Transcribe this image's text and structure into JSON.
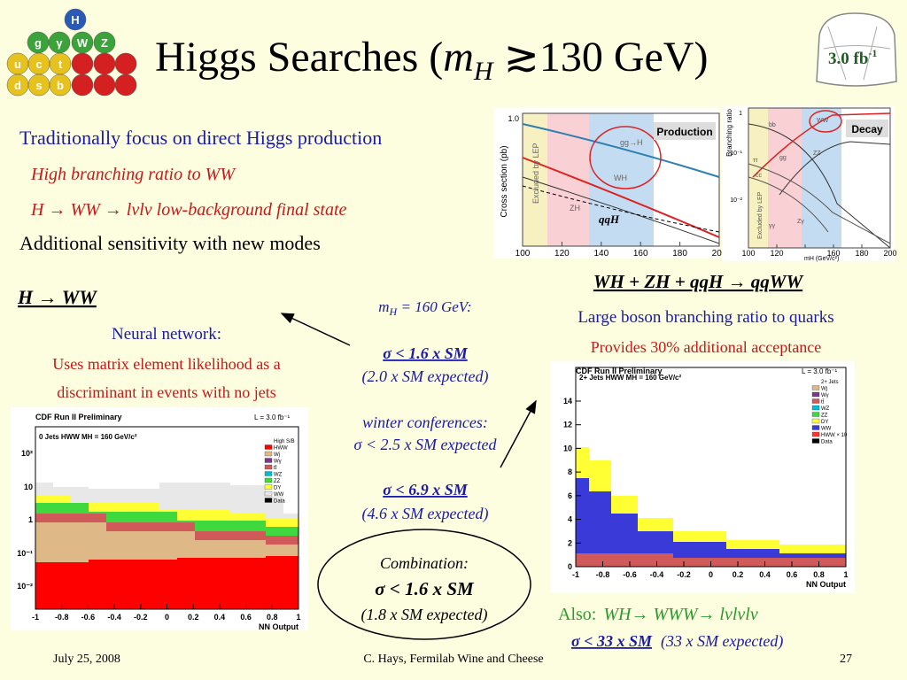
{
  "header": {
    "title": [
      "Higgs Searches (",
      "m",
      "H",
      " ≳130 GeV)"
    ],
    "badge": [
      "3.0 fb",
      "-1"
    ],
    "particles": [
      "H",
      "g",
      "γ",
      "W",
      "Z",
      "u",
      "c",
      "t",
      "d",
      "s",
      "b"
    ]
  },
  "intro": [
    "Traditionally focus on direct Higgs production",
    "High branching ratio to WW",
    "H → WW → lνlν low-background final state",
    "Additional sensitivity with new modes"
  ],
  "left": {
    "heading": "H → WW",
    "method": "Neural network:",
    "desc": [
      "Uses matrix element likelihood as a",
      "discriminant in events with no jets"
    ]
  },
  "center": {
    "mass": [
      "m",
      "H",
      " = 160 GeV:"
    ],
    "result": "σ < 1.6 x SM",
    "expected": "(2.0 x SM expected)",
    "winter_label": "winter conferences:",
    "winter": "σ < 2.5 x SM expected",
    "right_result": "σ < 6.9 x SM",
    "right_expected": "(4.6 x SM expected)",
    "combination": {
      "label": "Combination:",
      "result": "σ < 1.6 x SM",
      "expected": "(1.8 x SM expected)"
    }
  },
  "right": {
    "heading": "WH + ZH + qqH → qqWW",
    "line1": "Large boson branching ratio to quarks",
    "line2": "Provides 30% additional acceptance",
    "also": "Also:",
    "also_mode": "WH→ WWW→ lνlνlν",
    "also_result": "σ < 33 x SM",
    "also_expected": "(33 x SM expected)"
  },
  "plot_production": {
    "title": "Production",
    "ylabel": "Cross section (pb)",
    "ytick": "1.0",
    "labels": [
      "gg→H",
      "WH",
      "ZH",
      "qqH",
      "Excluded by LEP"
    ],
    "xticks": [
      100,
      120,
      140,
      160,
      180,
      200
    ]
  },
  "plot_decay": {
    "title": "Decay",
    "ylabel": "Branching ratio",
    "xlabel": "mH (GeV/c²)",
    "yticks": [
      "1",
      "10⁻¹",
      "10⁻²"
    ],
    "labels": [
      "bb",
      "WW",
      "ZZ",
      "gg",
      "ττ",
      "cc",
      "Zγ",
      "γγ",
      "Excluded by LEP"
    ],
    "xticks": [
      100,
      120,
      140,
      160,
      180,
      200
    ]
  },
  "hist_left": {
    "header": "CDF Run II Preliminary",
    "subtitle": "0 Jets HWW MH = 160 GeV/c²",
    "lumi": "L = 3.0 fb⁻¹",
    "legend": [
      "High S/B",
      "HWW",
      "Wj",
      "Wγ",
      "tt̄",
      "WZ",
      "ZZ",
      "DY",
      "WW",
      "Data"
    ],
    "yticks": [
      "10²",
      "10",
      "1",
      "10⁻¹",
      "10⁻²"
    ],
    "xticks": [
      -1,
      -0.8,
      -0.6,
      -0.4,
      -0.2,
      0,
      0.2,
      0.4,
      0.6,
      0.8,
      1
    ],
    "xlabel": "NN Output"
  },
  "hist_right": {
    "header": "CDF Run II Preliminary",
    "subtitle": "2+ Jets HWW MH = 160 GeV/c²",
    "lumi": "L = 3.0 fb⁻¹",
    "legend": [
      "2+ Jets",
      "Wj",
      "Wγ",
      "tt̄",
      "WZ",
      "ZZ",
      "DY",
      "WW",
      "HWW × 10",
      "Data"
    ],
    "yticks": [
      0,
      2,
      4,
      6,
      8,
      10,
      12,
      14
    ],
    "xticks": [
      -1,
      -0.8,
      -0.6,
      -0.4,
      -0.2,
      0,
      0.2,
      0.4,
      0.6,
      0.8,
      1
    ],
    "xlabel": "NN Output"
  },
  "footer": {
    "date": "July 25, 2008",
    "presenter": "C. Hays, Fermilab Wine and Cheese",
    "page": 27
  }
}
